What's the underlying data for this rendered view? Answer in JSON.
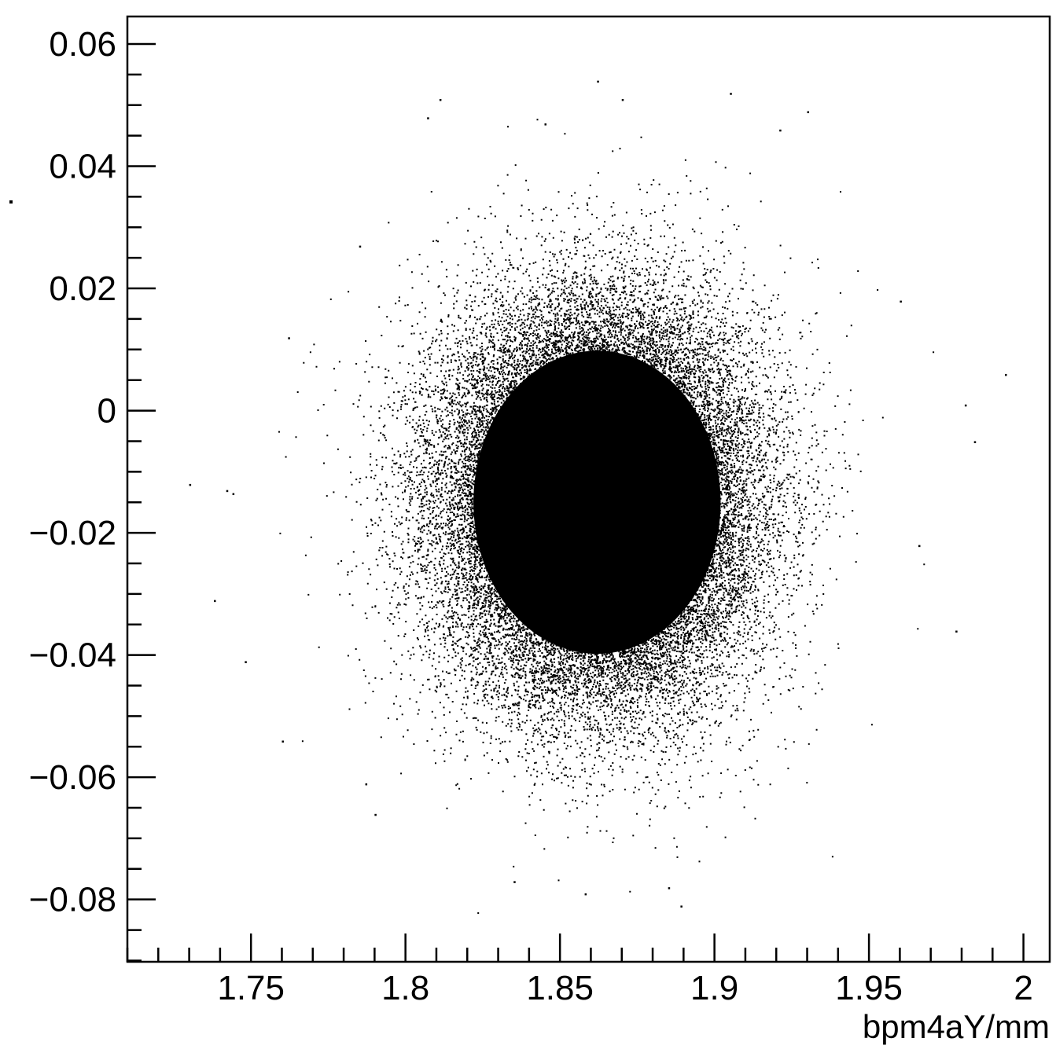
{
  "chart_data": {
    "type": "scatter",
    "title": "",
    "xlabel": "bpm4aY/mm",
    "ylabel": "",
    "xlim": [
      1.71,
      2.0085
    ],
    "ylim": [
      -0.0902,
      0.0645
    ],
    "x_ticks": [
      {
        "value": 1.75,
        "label": "1.75"
      },
      {
        "value": 1.8,
        "label": "1.8"
      },
      {
        "value": 1.85,
        "label": "1.85"
      },
      {
        "value": 1.9,
        "label": "1.9"
      },
      {
        "value": 1.95,
        "label": "1.95"
      },
      {
        "value": 2.0,
        "label": "2"
      }
    ],
    "y_ticks": [
      {
        "value": 0.06,
        "label": "0.06"
      },
      {
        "value": 0.04,
        "label": "0.04"
      },
      {
        "value": 0.02,
        "label": "0.02"
      },
      {
        "value": 0.0,
        "label": "0"
      },
      {
        "value": -0.02,
        "label": "−0.02"
      },
      {
        "value": -0.04,
        "label": "−0.04"
      },
      {
        "value": -0.06,
        "label": "−0.06"
      },
      {
        "value": -0.08,
        "label": "−0.08"
      }
    ],
    "x_minor_step": 0.01,
    "y_minor_step": 0.005,
    "grid": false,
    "legend": "none",
    "marker_color": "#000000",
    "distribution": {
      "x_center": 1.862,
      "y_center": -0.015,
      "x_std": 0.025,
      "y_std": 0.016
    },
    "points": [
      [
        1.73,
        -0.012
      ],
      [
        1.742,
        -0.013
      ],
      [
        1.744,
        -0.0135
      ],
      [
        1.748,
        -0.041
      ],
      [
        1.738,
        -0.031
      ],
      [
        1.762,
        0.012
      ],
      [
        1.785,
        0.027
      ],
      [
        1.811,
        0.051
      ],
      [
        1.807,
        0.048
      ],
      [
        1.835,
        -0.077
      ],
      [
        1.858,
        -0.079
      ],
      [
        1.885,
        -0.078
      ],
      [
        1.889,
        -0.081
      ],
      [
        1.87,
        0.051
      ],
      [
        1.862,
        0.054
      ],
      [
        1.981,
        0.001
      ],
      [
        1.994,
        0.006
      ],
      [
        1.984,
        -0.005
      ],
      [
        1.978,
        -0.036
      ],
      [
        1.93,
        0.049
      ],
      [
        1.921,
        0.046
      ],
      [
        1.905,
        0.052
      ],
      [
        1.79,
        -0.066
      ],
      [
        1.76,
        -0.054
      ],
      [
        1.96,
        0.018
      ],
      [
        1.966,
        -0.022
      ],
      [
        1.787,
        -0.061
      ],
      [
        1.845,
        0.047
      ]
    ]
  }
}
